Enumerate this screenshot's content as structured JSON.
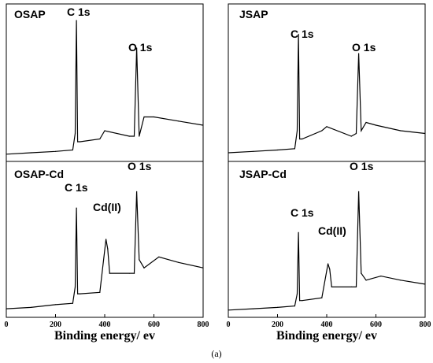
{
  "chart_data": [
    {
      "type": "line",
      "panel_label": "OSAP",
      "annotations": [
        "C 1s",
        "O 1s"
      ],
      "x": [
        0,
        100,
        200,
        270,
        280,
        285,
        290,
        300,
        380,
        400,
        500,
        520,
        530,
        540,
        560,
        600,
        700,
        800
      ],
      "y": [
        0.03,
        0.04,
        0.05,
        0.06,
        0.18,
        1.0,
        0.12,
        0.12,
        0.14,
        0.2,
        0.16,
        0.16,
        0.8,
        0.16,
        0.3,
        0.3,
        0.27,
        0.24
      ],
      "xlim": [
        0,
        800
      ]
    },
    {
      "type": "line",
      "panel_label": "JSAP",
      "annotations": [
        "C 1s",
        "O 1s"
      ],
      "x": [
        0,
        100,
        200,
        270,
        280,
        285,
        290,
        300,
        380,
        400,
        500,
        520,
        530,
        540,
        560,
        600,
        700,
        800
      ],
      "y": [
        0.04,
        0.05,
        0.06,
        0.07,
        0.2,
        0.9,
        0.14,
        0.14,
        0.2,
        0.23,
        0.16,
        0.18,
        0.76,
        0.2,
        0.26,
        0.24,
        0.2,
        0.18
      ],
      "xlim": [
        0,
        800
      ]
    },
    {
      "type": "line",
      "panel_label": "OSAP-Cd",
      "annotations": [
        "C 1s",
        "Cd(II)",
        "O 1s"
      ],
      "x": [
        0,
        100,
        200,
        270,
        280,
        285,
        290,
        300,
        380,
        405,
        412,
        420,
        500,
        520,
        530,
        540,
        560,
        620,
        700,
        800
      ],
      "y": [
        0.04,
        0.05,
        0.07,
        0.08,
        0.2,
        0.78,
        0.15,
        0.15,
        0.16,
        0.55,
        0.48,
        0.3,
        0.3,
        0.3,
        0.9,
        0.4,
        0.34,
        0.42,
        0.38,
        0.34
      ],
      "xlim": [
        0,
        800
      ]
    },
    {
      "type": "line",
      "panel_label": "JSAP-Cd",
      "annotations": [
        "C 1s",
        "Cd(II)",
        "O 1s"
      ],
      "x": [
        0,
        100,
        200,
        270,
        280,
        285,
        290,
        300,
        380,
        405,
        412,
        420,
        500,
        520,
        530,
        540,
        560,
        620,
        700,
        800
      ],
      "y": [
        0.03,
        0.04,
        0.05,
        0.06,
        0.15,
        0.6,
        0.1,
        0.1,
        0.12,
        0.37,
        0.33,
        0.2,
        0.2,
        0.2,
        0.9,
        0.3,
        0.25,
        0.28,
        0.25,
        0.22
      ],
      "xlim": [
        0,
        800
      ]
    }
  ],
  "x_ticks": [
    "0",
    "200",
    "400",
    "600",
    "800"
  ],
  "xlabel": "Binding energy/ ev",
  "caption": "(a)",
  "line_color": "#000000"
}
